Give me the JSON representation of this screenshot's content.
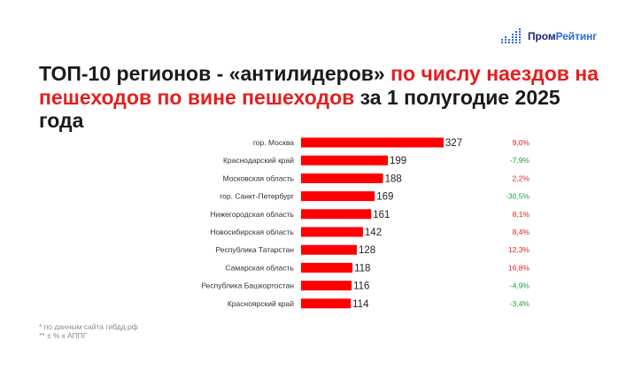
{
  "logo": {
    "text_part1": "Пром",
    "text_part2": "Рейтинг",
    "icon": "bar-chart-dots-icon"
  },
  "title": {
    "part1": "ТОП-10 регионов - «антилидеров» ",
    "part2": "по числу наездов на пешеходов по вине пешеходов",
    "part3": " за 1 полугодие 2025 года"
  },
  "footnotes": {
    "note1": "* по данным сайта гибдд.рф",
    "note2": "** ± % к АППГ"
  },
  "colors": {
    "bar": "#ff0000",
    "positive_change": "#e41e1e",
    "negative_change": "#1f9e3c",
    "title_accent": "#e41e1e"
  },
  "chart_data": {
    "type": "bar",
    "orientation": "horizontal",
    "categories": [
      "гор. Москва",
      "Краснодарский край",
      "Московская область",
      "гор. Санкт-Петербург",
      "Нижегородская область",
      "Новосибирская область",
      "Республика Татарстан",
      "Самарская область",
      "Республика Башкортостан",
      "Красноярский край"
    ],
    "values": [
      327,
      199,
      188,
      169,
      161,
      142,
      128,
      118,
      116,
      114
    ],
    "value_labels": [
      "327",
      "199",
      "188",
      "169",
      "161",
      "142",
      "128",
      "118",
      "116",
      "114"
    ],
    "changes": [
      "9,0%",
      "-7,9%",
      "2,2%",
      "-30,5%",
      "8,1%",
      "8,4%",
      "12,3%",
      "16,8%",
      "-4,9%",
      "-3,4%"
    ],
    "xlim": [
      0,
      327
    ],
    "grid": false,
    "legend": "none"
  }
}
